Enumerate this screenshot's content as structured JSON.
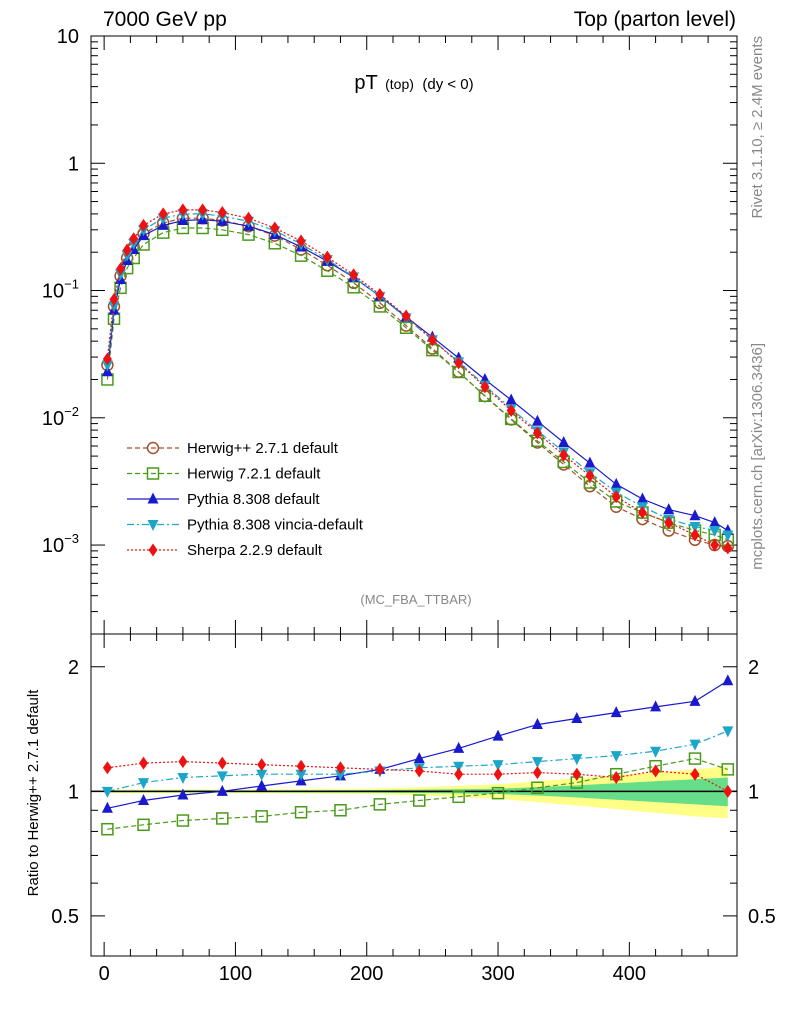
{
  "header": {
    "left": "7000 GeV pp",
    "right": "Top (parton level)"
  },
  "side_text": {
    "top": "Rivet 3.1.10, ≥ 2.4M events",
    "bottom": "mcplots.cern.ch [arXiv:1306.3436]"
  },
  "chart_data": [
    {
      "type": "line",
      "title": "pT",
      "title_sub": "(top)",
      "title_extra": "(dy < 0)",
      "watermark": "(MC_FBA_TTBAR)",
      "yscale": "log",
      "ylim": [
        0.0002,
        10
      ],
      "xlim": [
        -10,
        482
      ],
      "yticks": [
        {
          "value": 10,
          "label": "10"
        },
        {
          "value": 1,
          "label": "1"
        },
        {
          "value": 0.1,
          "base": "10",
          "exp": "−1"
        },
        {
          "value": 0.01,
          "base": "10",
          "exp": "−2"
        },
        {
          "value": 0.001,
          "base": "10",
          "exp": "−3"
        }
      ],
      "grid": false,
      "legend_position": "bottom-left",
      "series": [
        {
          "name": "Herwig++ 2.7.1 default",
          "color": "#a0522d",
          "marker": "open-circle",
          "dash": "dashed",
          "x": [
            2.5,
            7.5,
            12.5,
            17.5,
            22.5,
            30,
            45,
            60,
            75,
            90,
            110,
            130,
            150,
            170,
            190,
            210,
            230,
            250,
            270,
            290,
            310,
            330,
            350,
            370,
            390,
            410,
            430,
            450,
            465,
            475
          ],
          "y": [
            0.026,
            0.075,
            0.13,
            0.18,
            0.22,
            0.28,
            0.34,
            0.37,
            0.37,
            0.355,
            0.32,
            0.27,
            0.21,
            0.158,
            0.115,
            0.08,
            0.053,
            0.035,
            0.023,
            0.0148,
            0.0097,
            0.0064,
            0.0043,
            0.0029,
            0.002,
            0.0016,
            0.0013,
            0.0011,
            0.001,
            0.00098
          ]
        },
        {
          "name": "Herwig 7.2.1 default",
          "color": "#4a9a1a",
          "marker": "open-square",
          "dash": "dashed",
          "x": [
            2.5,
            7.5,
            12.5,
            17.5,
            22.5,
            30,
            45,
            60,
            75,
            90,
            110,
            130,
            150,
            170,
            190,
            210,
            230,
            250,
            270,
            290,
            310,
            330,
            350,
            370,
            390,
            410,
            430,
            450,
            465,
            475
          ],
          "y": [
            0.02,
            0.06,
            0.105,
            0.15,
            0.18,
            0.23,
            0.285,
            0.31,
            0.31,
            0.3,
            0.275,
            0.235,
            0.188,
            0.143,
            0.106,
            0.075,
            0.051,
            0.034,
            0.0229,
            0.0149,
            0.0098,
            0.0066,
            0.0045,
            0.0031,
            0.0022,
            0.0018,
            0.0015,
            0.0013,
            0.0012,
            0.0011
          ]
        },
        {
          "name": "Pythia 8.308 default",
          "color": "#1a1acc",
          "marker": "triangle-up",
          "dash": "solid",
          "x": [
            2.5,
            7.5,
            12.5,
            17.5,
            22.5,
            30,
            45,
            60,
            75,
            90,
            110,
            130,
            150,
            170,
            190,
            210,
            230,
            250,
            270,
            290,
            310,
            330,
            350,
            370,
            390,
            410,
            430,
            450,
            465,
            475
          ],
          "y": [
            0.023,
            0.07,
            0.122,
            0.172,
            0.21,
            0.27,
            0.325,
            0.355,
            0.36,
            0.35,
            0.32,
            0.275,
            0.22,
            0.17,
            0.127,
            0.09,
            0.062,
            0.043,
            0.0295,
            0.02,
            0.0138,
            0.0094,
            0.0064,
            0.0044,
            0.003,
            0.0023,
            0.0019,
            0.0017,
            0.0015,
            0.0013
          ]
        },
        {
          "name": "Pythia 8.308 vincia-default",
          "color": "#1ba6c8",
          "marker": "triangle-down",
          "dash": "dashdot",
          "x": [
            2.5,
            7.5,
            12.5,
            17.5,
            22.5,
            30,
            45,
            60,
            75,
            90,
            110,
            130,
            150,
            170,
            190,
            210,
            230,
            250,
            270,
            290,
            310,
            330,
            350,
            370,
            390,
            410,
            430,
            450,
            465,
            475
          ],
          "y": [
            0.026,
            0.076,
            0.135,
            0.19,
            0.235,
            0.3,
            0.37,
            0.4,
            0.4,
            0.385,
            0.35,
            0.295,
            0.232,
            0.175,
            0.128,
            0.09,
            0.061,
            0.041,
            0.0275,
            0.018,
            0.0118,
            0.0079,
            0.0054,
            0.0037,
            0.0026,
            0.002,
            0.0016,
            0.0014,
            0.0013,
            0.0012
          ]
        },
        {
          "name": "Sherpa 2.2.9 default",
          "color": "#ee1111",
          "marker": "diamond",
          "dash": "dotted",
          "x": [
            2.5,
            7.5,
            12.5,
            17.5,
            22.5,
            30,
            45,
            60,
            75,
            90,
            110,
            130,
            150,
            170,
            190,
            210,
            230,
            250,
            270,
            290,
            310,
            330,
            350,
            370,
            390,
            410,
            430,
            450,
            465,
            475
          ],
          "y": [
            0.029,
            0.085,
            0.148,
            0.208,
            0.255,
            0.325,
            0.4,
            0.43,
            0.43,
            0.41,
            0.37,
            0.31,
            0.245,
            0.183,
            0.133,
            0.093,
            0.063,
            0.041,
            0.027,
            0.0175,
            0.0114,
            0.0076,
            0.0051,
            0.0035,
            0.0024,
            0.0018,
            0.0015,
            0.0012,
            0.001,
            0.00095
          ]
        }
      ]
    },
    {
      "type": "line",
      "ylabel": "Ratio to Herwig++ 2.7.1 default",
      "yscale": "log",
      "ylim": [
        0.4,
        2.4
      ],
      "xlim": [
        -10,
        482
      ],
      "yticks": [
        {
          "value": 2,
          "label": "2"
        },
        {
          "value": 1,
          "label": "1"
        },
        {
          "value": 0.5,
          "label": "0.5"
        }
      ],
      "xticks": [
        {
          "value": 0,
          "label": "0"
        },
        {
          "value": 100,
          "label": "100"
        },
        {
          "value": 200,
          "label": "200"
        },
        {
          "value": 300,
          "label": "300"
        },
        {
          "value": 400,
          "label": "400"
        }
      ],
      "reference_line": 1,
      "uncertainty_bands": [
        {
          "color": "#ffff88",
          "x": [
            0,
            100,
            200,
            250,
            300,
            350,
            400,
            450,
            475
          ],
          "low": [
            0.99,
            0.99,
            0.985,
            0.975,
            0.96,
            0.93,
            0.9,
            0.87,
            0.86
          ],
          "high": [
            1.01,
            1.01,
            1.015,
            1.025,
            1.04,
            1.07,
            1.1,
            1.13,
            1.15
          ]
        },
        {
          "color": "#66dd88",
          "x": [
            0,
            100,
            200,
            250,
            300,
            350,
            400,
            450,
            475
          ],
          "low": [
            0.995,
            0.995,
            0.993,
            0.99,
            0.985,
            0.97,
            0.95,
            0.93,
            0.92
          ],
          "high": [
            1.005,
            1.005,
            1.007,
            1.01,
            1.015,
            1.03,
            1.05,
            1.07,
            1.08
          ]
        }
      ],
      "series": [
        {
          "name": "Herwig 7.2.1 default",
          "color": "#4a9a1a",
          "x": [
            2.5,
            30,
            60,
            90,
            120,
            150,
            180,
            210,
            240,
            270,
            300,
            330,
            360,
            390,
            420,
            450,
            475
          ],
          "y": [
            0.81,
            0.83,
            0.85,
            0.86,
            0.87,
            0.89,
            0.9,
            0.93,
            0.95,
            0.97,
            0.99,
            1.02,
            1.05,
            1.1,
            1.15,
            1.2,
            1.13
          ]
        },
        {
          "name": "Pythia 8.308 default",
          "color": "#1a1acc",
          "x": [
            2.5,
            30,
            60,
            90,
            120,
            150,
            180,
            210,
            240,
            270,
            300,
            330,
            360,
            390,
            420,
            450,
            475
          ],
          "y": [
            0.91,
            0.95,
            0.98,
            1.0,
            1.03,
            1.06,
            1.09,
            1.13,
            1.2,
            1.27,
            1.36,
            1.45,
            1.5,
            1.55,
            1.6,
            1.65,
            1.85
          ]
        },
        {
          "name": "Pythia 8.308 vincia-default",
          "color": "#1ba6c8",
          "x": [
            2.5,
            30,
            60,
            90,
            120,
            150,
            180,
            210,
            240,
            270,
            300,
            330,
            360,
            390,
            420,
            450,
            475
          ],
          "y": [
            1.0,
            1.05,
            1.08,
            1.09,
            1.1,
            1.1,
            1.1,
            1.12,
            1.14,
            1.15,
            1.16,
            1.18,
            1.2,
            1.22,
            1.25,
            1.3,
            1.4
          ]
        },
        {
          "name": "Sherpa 2.2.9 default",
          "color": "#ee1111",
          "x": [
            2.5,
            30,
            60,
            90,
            120,
            150,
            180,
            210,
            240,
            270,
            300,
            330,
            360,
            390,
            420,
            450,
            475
          ],
          "y": [
            1.14,
            1.17,
            1.18,
            1.17,
            1.16,
            1.15,
            1.14,
            1.13,
            1.12,
            1.1,
            1.1,
            1.11,
            1.1,
            1.08,
            1.12,
            1.1,
            1.0
          ]
        }
      ]
    }
  ]
}
